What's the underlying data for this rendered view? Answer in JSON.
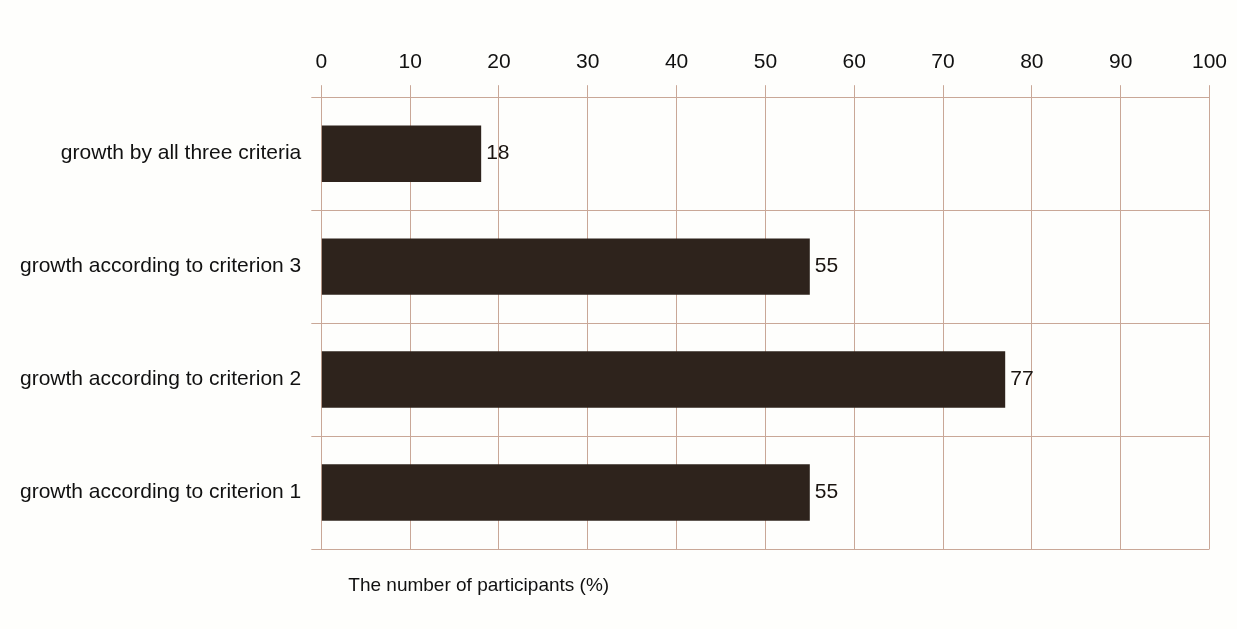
{
  "chart_data": {
    "type": "bar",
    "orientation": "horizontal",
    "xlabel": "The number of participants (%)",
    "categories": [
      "growth by all three criteria",
      "growth according to criterion 3",
      "growth according to criterion 2",
      "growth according to criterion 1"
    ],
    "values": [
      18,
      55,
      77,
      55
    ],
    "color": "#2e231c",
    "xlim": [
      0,
      100
    ],
    "xticks": [
      0,
      10,
      20,
      30,
      40,
      50,
      60,
      70,
      80,
      90,
      100
    ],
    "grid": true,
    "data_labels": true,
    "legend": false
  }
}
